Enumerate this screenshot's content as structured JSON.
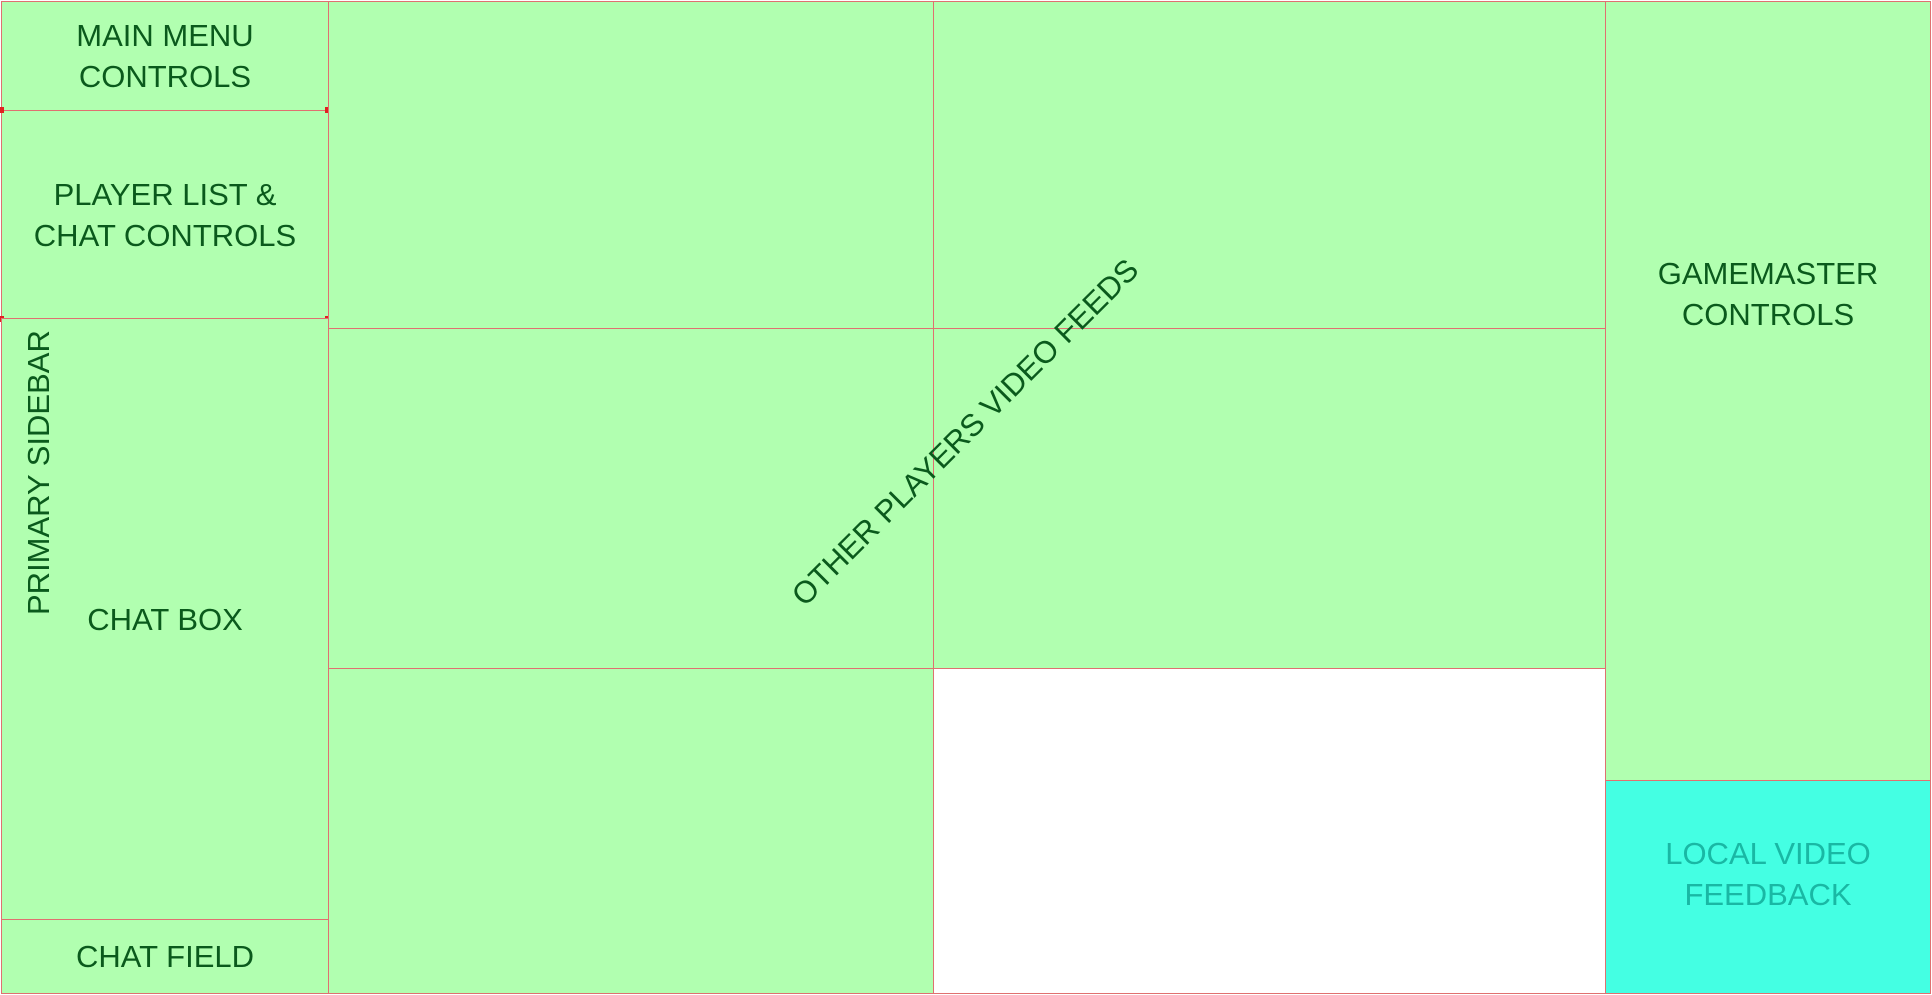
{
  "colors": {
    "panel_fill": "#b1ffb0",
    "panel_border": "#e07070",
    "label_text": "#0a5a1c",
    "local_video_fill": "#44ffe3",
    "local_video_text": "#19b8a4",
    "handle": "#e02020"
  },
  "panels": {
    "main_menu": "MAIN MENU\nCONTROLS",
    "player_list": "PLAYER LIST &\nCHAT CONTROLS",
    "chat_box": "CHAT BOX",
    "chat_field": "CHAT FIELD",
    "gamemaster": "GAMEMASTER\nCONTROLS",
    "local_video": "LOCAL VIDEO\nFEEDBACK"
  },
  "rotated_labels": {
    "primary_sidebar": "PRIMARY SIDEBAR",
    "video_feeds": "OTHER PLAYERS VIDEO FEEDS"
  }
}
